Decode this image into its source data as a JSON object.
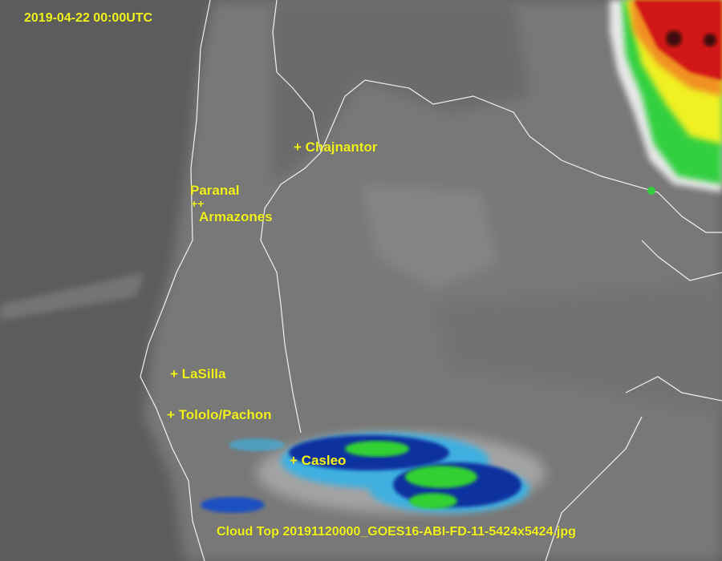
{
  "timestamp": "2019-04-22 00:00UTC",
  "caption": "Cloud Top 20191120000_GOES16-ABI-FD-11-5424x5424.jpg",
  "label_color": "#f2f21c",
  "observatories": [
    {
      "name": "Chajnantor",
      "marker": "+"
    },
    {
      "name": "Paranal",
      "marker": "+"
    },
    {
      "name": "Armazones",
      "marker": "+"
    },
    {
      "name": "LaSilla",
      "marker": "+"
    },
    {
      "name": "Tololo/Pachon",
      "marker": "+"
    },
    {
      "name": "Casleo",
      "marker": "+"
    }
  ],
  "colors": {
    "ocean": "#5a5a5a",
    "land": "#7a7a7a",
    "border": "#ffffff",
    "storm_cold": "#d01010",
    "storm_mid": "#f0f020",
    "storm_green": "#30d030",
    "storm_blue": "#1030a0",
    "storm_cyan": "#40b0e0"
  }
}
